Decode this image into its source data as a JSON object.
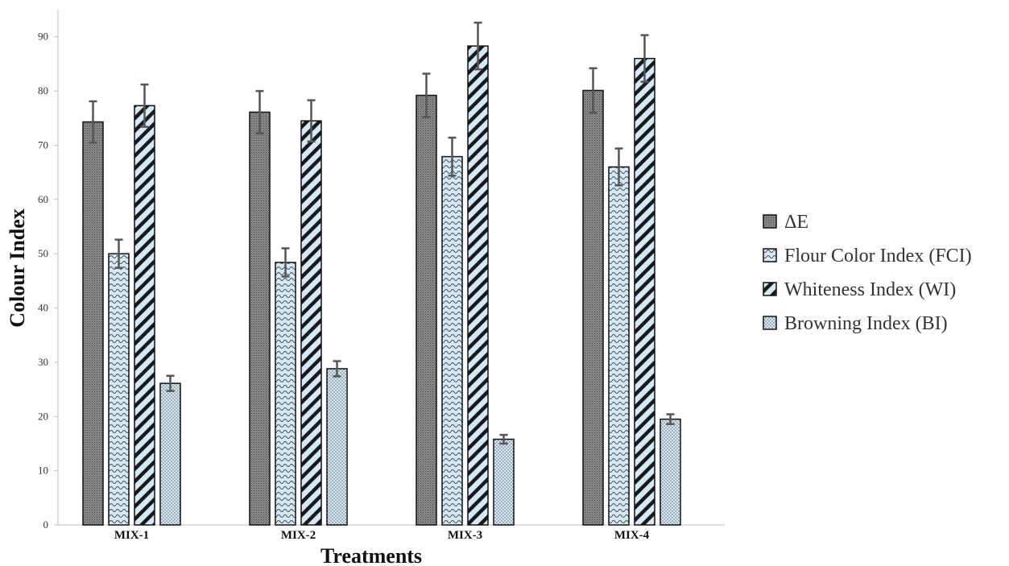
{
  "chart_data": {
    "type": "bar",
    "title": "",
    "xlabel": "Treatments",
    "ylabel": "Colour Index",
    "categories": [
      "MIX-1",
      "MIX-2",
      "MIX-3",
      "MIX-4"
    ],
    "series": [
      {
        "name": "ΔE",
        "values": [
          74.3,
          76.1,
          79.2,
          80.1
        ],
        "errors": [
          3.8,
          3.9,
          4.0,
          4.1
        ],
        "pattern": "dense-dots",
        "color": "#8a8a8a"
      },
      {
        "name": "Flour Color Index (FCI)",
        "values": [
          50.0,
          48.4,
          67.9,
          66.0
        ],
        "errors": [
          2.6,
          2.6,
          3.5,
          3.4
        ],
        "pattern": "waves",
        "color": "#cfe6f3"
      },
      {
        "name": "Whiteness Index (WI)",
        "values": [
          77.3,
          74.5,
          88.3,
          86.0
        ],
        "errors": [
          3.9,
          3.8,
          4.3,
          4.3
        ],
        "pattern": "diagonal",
        "color": "#cfe6f3"
      },
      {
        "name": "Browning Index (BI)",
        "values": [
          26.1,
          28.8,
          15.8,
          19.5
        ],
        "errors": [
          1.4,
          1.4,
          0.8,
          0.9
        ],
        "pattern": "dots",
        "color": "#cfe6f3"
      }
    ],
    "ylim": [
      0,
      95
    ],
    "yticks": [
      0,
      10,
      20,
      30,
      40,
      50,
      60,
      70,
      80,
      90
    ],
    "grid": false,
    "legend_position": "right",
    "error_bar_color": "#555555"
  }
}
